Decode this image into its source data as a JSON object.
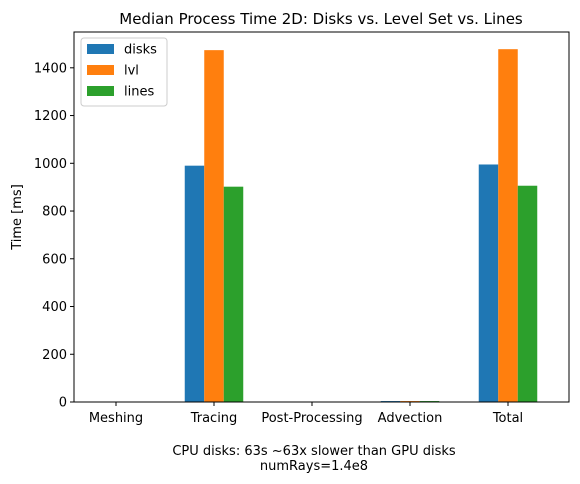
{
  "chart_data": {
    "type": "bar",
    "title": "Median Process Time 2D: Disks vs. Level Set vs. Lines",
    "xlabel_lines": [
      "CPU disks: 63s ~63x slower than GPU disks",
      "numRays=1.4e8"
    ],
    "ylabel": "Time [ms]",
    "ylim": [
      0,
      1550
    ],
    "yticks": [
      0,
      200,
      400,
      600,
      800,
      1000,
      1200,
      1400
    ],
    "categories": [
      "Meshing",
      "Tracing",
      "Post-Processing",
      "Advection",
      "Total"
    ],
    "series": [
      {
        "name": "disks",
        "color": "#1f77b4",
        "values": [
          0,
          990,
          0,
          4,
          995
        ]
      },
      {
        "name": "lvl",
        "color": "#ff7f0e",
        "values": [
          2,
          1474,
          2,
          4,
          1478
        ]
      },
      {
        "name": "lines",
        "color": "#2ca02c",
        "values": [
          0,
          902,
          0,
          4,
          906
        ]
      }
    ],
    "legend_position": "upper-left",
    "grid": false
  }
}
